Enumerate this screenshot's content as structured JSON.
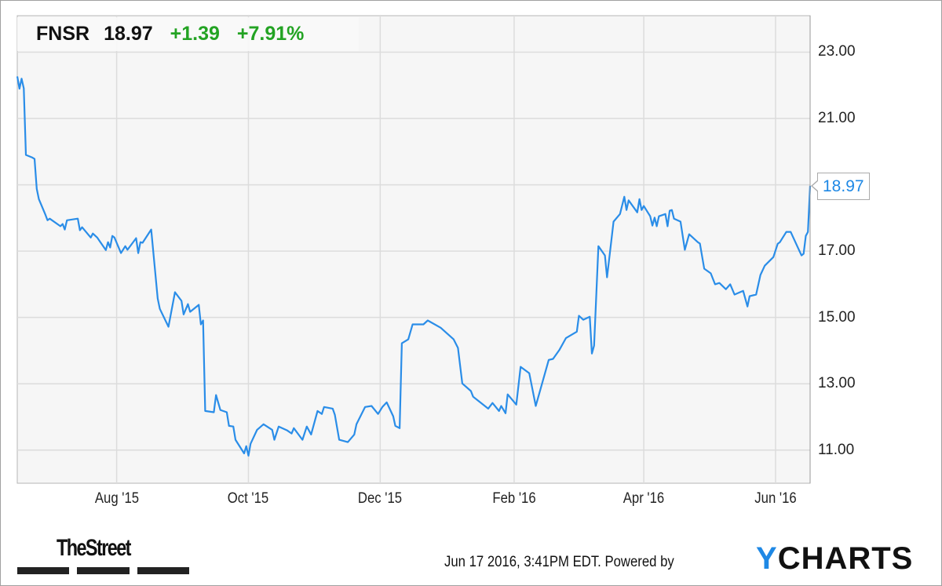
{
  "header": {
    "ticker": "FNSR",
    "price": "18.97",
    "change": "+1.39",
    "change_pct": "+7.91%"
  },
  "last_price_label": "18.97",
  "footer": {
    "publisher_logo": "TheStreet",
    "timestamp": "Jun 17 2016, 3:41PM EDT. Powered by",
    "brand_logo_y": "Y",
    "brand_logo_rest": "CHARTS"
  },
  "colors": {
    "line": "#2a8de8",
    "up": "#23a323",
    "last_label": "#1e88e5",
    "plot_bg": "#f6f6f6",
    "grid": "#dcdcdc"
  },
  "chart_data": {
    "type": "line",
    "title": "",
    "xlabel": "",
    "ylabel": "",
    "y_axis_position": "right",
    "xlim": [
      "2015-06-16",
      "2016-06-17"
    ],
    "ylim": [
      10,
      24.1
    ],
    "grid": true,
    "x_ticks": [
      {
        "date": "2015-08-01",
        "label": "Aug '15"
      },
      {
        "date": "2015-10-01",
        "label": "Oct '15"
      },
      {
        "date": "2015-12-01",
        "label": "Dec '15"
      },
      {
        "date": "2016-02-01",
        "label": "Feb '16"
      },
      {
        "date": "2016-04-01",
        "label": "Apr '16"
      },
      {
        "date": "2016-06-01",
        "label": "Jun '16"
      }
    ],
    "y_ticks": [
      {
        "value": 23,
        "label": "23.00"
      },
      {
        "value": 21,
        "label": "21.00"
      },
      {
        "value": 19,
        "label": ""
      },
      {
        "value": 17,
        "label": "17.00"
      },
      {
        "value": 15,
        "label": "15.00"
      },
      {
        "value": 13,
        "label": "13.00"
      },
      {
        "value": 11,
        "label": "11.00"
      }
    ],
    "series": [
      {
        "points": [
          [
            "2015-06-16",
            22.27
          ],
          [
            "2015-06-17",
            21.9
          ],
          [
            "2015-06-18",
            22.2
          ],
          [
            "2015-06-19",
            21.91
          ],
          [
            "2015-06-20",
            19.9
          ],
          [
            "2015-06-23",
            19.82
          ],
          [
            "2015-06-24",
            19.78
          ],
          [
            "2015-06-25",
            18.88
          ],
          [
            "2015-06-26",
            18.57
          ],
          [
            "2015-06-29",
            18.1
          ],
          [
            "2015-06-30",
            17.93
          ],
          [
            "2015-07-01",
            17.98
          ],
          [
            "2015-07-06",
            17.75
          ],
          [
            "2015-07-07",
            17.82
          ],
          [
            "2015-07-08",
            17.65
          ],
          [
            "2015-07-09",
            17.93
          ],
          [
            "2015-07-14",
            17.98
          ],
          [
            "2015-07-15",
            17.63
          ],
          [
            "2015-07-16",
            17.72
          ],
          [
            "2015-07-20",
            17.41
          ],
          [
            "2015-07-21",
            17.53
          ],
          [
            "2015-07-23",
            17.41
          ],
          [
            "2015-07-27",
            17.03
          ],
          [
            "2015-07-28",
            17.27
          ],
          [
            "2015-07-29",
            17.11
          ],
          [
            "2015-07-30",
            17.46
          ],
          [
            "2015-07-31",
            17.41
          ],
          [
            "2015-08-03",
            16.94
          ],
          [
            "2015-08-05",
            17.15
          ],
          [
            "2015-08-06",
            17.04
          ],
          [
            "2015-08-10",
            17.39
          ],
          [
            "2015-08-11",
            16.94
          ],
          [
            "2015-08-12",
            17.27
          ],
          [
            "2015-08-13",
            17.25
          ],
          [
            "2015-08-17",
            17.65
          ],
          [
            "2015-08-20",
            15.57
          ],
          [
            "2015-08-21",
            15.26
          ],
          [
            "2015-08-25",
            14.72
          ],
          [
            "2015-08-28",
            15.76
          ],
          [
            "2015-08-31",
            15.5
          ],
          [
            "2015-09-01",
            15.09
          ],
          [
            "2015-09-03",
            15.4
          ],
          [
            "2015-09-04",
            15.17
          ],
          [
            "2015-09-08",
            15.38
          ],
          [
            "2015-09-09",
            14.79
          ],
          [
            "2015-09-10",
            14.91
          ],
          [
            "2015-09-11",
            12.18
          ],
          [
            "2015-09-15",
            12.14
          ],
          [
            "2015-09-16",
            12.66
          ],
          [
            "2015-09-18",
            12.21
          ],
          [
            "2015-09-21",
            12.14
          ],
          [
            "2015-09-22",
            11.73
          ],
          [
            "2015-09-24",
            11.71
          ],
          [
            "2015-09-25",
            11.31
          ],
          [
            "2015-09-29",
            10.9
          ],
          [
            "2015-09-30",
            11.12
          ],
          [
            "2015-10-01",
            10.83
          ],
          [
            "2015-10-02",
            11.19
          ],
          [
            "2015-10-05",
            11.61
          ],
          [
            "2015-10-08",
            11.78
          ],
          [
            "2015-10-12",
            11.61
          ],
          [
            "2015-10-13",
            11.31
          ],
          [
            "2015-10-15",
            11.71
          ],
          [
            "2015-10-19",
            11.59
          ],
          [
            "2015-10-21",
            11.5
          ],
          [
            "2015-10-22",
            11.66
          ],
          [
            "2015-10-26",
            11.31
          ],
          [
            "2015-10-28",
            11.71
          ],
          [
            "2015-10-30",
            11.47
          ],
          [
            "2015-11-02",
            12.18
          ],
          [
            "2015-11-04",
            12.09
          ],
          [
            "2015-11-05",
            12.3
          ],
          [
            "2015-11-09",
            12.25
          ],
          [
            "2015-11-10",
            12.06
          ],
          [
            "2015-11-12",
            11.31
          ],
          [
            "2015-11-16",
            11.24
          ],
          [
            "2015-11-19",
            11.47
          ],
          [
            "2015-11-20",
            11.78
          ],
          [
            "2015-11-24",
            12.3
          ],
          [
            "2015-11-27",
            12.33
          ],
          [
            "2015-11-30",
            12.09
          ],
          [
            "2015-12-02",
            12.3
          ],
          [
            "2015-12-04",
            12.44
          ],
          [
            "2015-12-07",
            12.02
          ],
          [
            "2015-12-08",
            11.73
          ],
          [
            "2015-12-10",
            11.66
          ],
          [
            "2015-12-11",
            14.22
          ],
          [
            "2015-12-14",
            14.34
          ],
          [
            "2015-12-16",
            14.79
          ],
          [
            "2015-12-21",
            14.79
          ],
          [
            "2015-12-23",
            14.91
          ],
          [
            "2015-12-29",
            14.69
          ],
          [
            "2016-01-04",
            14.34
          ],
          [
            "2016-01-06",
            14.08
          ],
          [
            "2016-01-08",
            13.01
          ],
          [
            "2016-01-12",
            12.78
          ],
          [
            "2016-01-13",
            12.61
          ],
          [
            "2016-01-20",
            12.25
          ],
          [
            "2016-01-22",
            12.42
          ],
          [
            "2016-01-25",
            12.18
          ],
          [
            "2016-01-26",
            12.33
          ],
          [
            "2016-01-28",
            12.11
          ],
          [
            "2016-01-29",
            12.68
          ],
          [
            "2016-02-02",
            12.37
          ],
          [
            "2016-02-04",
            13.51
          ],
          [
            "2016-02-08",
            13.32
          ],
          [
            "2016-02-11",
            12.33
          ],
          [
            "2016-02-17",
            13.72
          ],
          [
            "2016-02-19",
            13.75
          ],
          [
            "2016-02-22",
            14.03
          ],
          [
            "2016-02-25",
            14.38
          ],
          [
            "2016-03-01",
            14.57
          ],
          [
            "2016-03-02",
            15.05
          ],
          [
            "2016-03-04",
            14.93
          ],
          [
            "2016-03-07",
            15.02
          ],
          [
            "2016-03-08",
            13.91
          ],
          [
            "2016-03-09",
            14.15
          ],
          [
            "2016-03-11",
            17.15
          ],
          [
            "2016-03-14",
            16.87
          ],
          [
            "2016-03-15",
            16.21
          ],
          [
            "2016-03-18",
            17.89
          ],
          [
            "2016-03-21",
            18.12
          ],
          [
            "2016-03-23",
            18.64
          ],
          [
            "2016-03-24",
            18.24
          ],
          [
            "2016-03-25",
            18.53
          ],
          [
            "2016-03-29",
            18.17
          ],
          [
            "2016-03-30",
            18.57
          ],
          [
            "2016-03-31",
            18.24
          ],
          [
            "2016-04-01",
            18.36
          ],
          [
            "2016-04-04",
            18.05
          ],
          [
            "2016-04-05",
            17.77
          ],
          [
            "2016-04-06",
            18.01
          ],
          [
            "2016-04-07",
            17.75
          ],
          [
            "2016-04-08",
            18.05
          ],
          [
            "2016-04-11",
            18.12
          ],
          [
            "2016-04-12",
            17.75
          ],
          [
            "2016-04-13",
            18.22
          ],
          [
            "2016-04-14",
            18.24
          ],
          [
            "2016-04-15",
            17.98
          ],
          [
            "2016-04-18",
            17.89
          ],
          [
            "2016-04-20",
            17.04
          ],
          [
            "2016-04-22",
            17.51
          ],
          [
            "2016-04-26",
            17.27
          ],
          [
            "2016-04-27",
            17.23
          ],
          [
            "2016-04-29",
            16.47
          ],
          [
            "2016-05-02",
            16.33
          ],
          [
            "2016-05-04",
            16.0
          ],
          [
            "2016-05-06",
            16.04
          ],
          [
            "2016-05-09",
            15.85
          ],
          [
            "2016-05-11",
            16.0
          ],
          [
            "2016-05-13",
            15.69
          ],
          [
            "2016-05-17",
            15.8
          ],
          [
            "2016-05-19",
            15.33
          ],
          [
            "2016-05-20",
            15.64
          ],
          [
            "2016-05-23",
            15.69
          ],
          [
            "2016-05-25",
            16.28
          ],
          [
            "2016-05-27",
            16.56
          ],
          [
            "2016-05-31",
            16.82
          ],
          [
            "2016-06-02",
            17.22
          ],
          [
            "2016-06-03",
            17.27
          ],
          [
            "2016-06-06",
            17.58
          ],
          [
            "2016-06-08",
            17.58
          ],
          [
            "2016-06-13",
            16.87
          ],
          [
            "2016-06-14",
            16.92
          ],
          [
            "2016-06-15",
            17.46
          ],
          [
            "2016-06-16",
            17.58
          ],
          [
            "2016-06-17",
            18.97
          ]
        ]
      }
    ]
  }
}
